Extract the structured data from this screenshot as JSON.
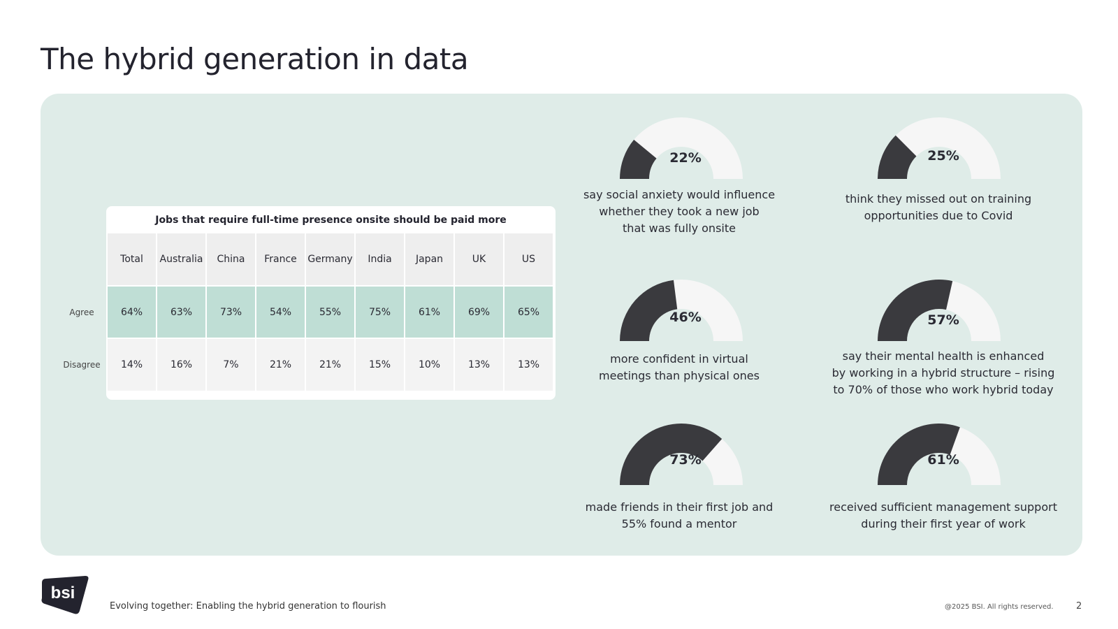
{
  "page": {
    "title": "The hybrid generation in data"
  },
  "chart_data": [
    {
      "type": "table",
      "title": "Jobs that require full-time presence onsite should be paid more",
      "columns": [
        "Total",
        "Australia",
        "China",
        "France",
        "Germany",
        "India",
        "Japan",
        "UK",
        "US"
      ],
      "rows": [
        {
          "label": "Agree",
          "values": [
            "64%",
            "63%",
            "73%",
            "54%",
            "55%",
            "75%",
            "61%",
            "69%",
            "65%"
          ]
        },
        {
          "label": "Disagree",
          "values": [
            "14%",
            "16%",
            "7%",
            "21%",
            "21%",
            "15%",
            "10%",
            "13%",
            "13%"
          ]
        }
      ]
    },
    {
      "type": "gauge",
      "items": [
        {
          "value": 22,
          "label": "22%",
          "lines": [
            "say social anxiety would influence",
            "whether they took a new job",
            "that was fully onsite"
          ]
        },
        {
          "value": 25,
          "label": "25%",
          "lines": [
            "think they missed out on training",
            "opportunities due to Covid"
          ]
        },
        {
          "value": 46,
          "label": "46%",
          "lines": [
            "more confident in virtual",
            "meetings than physical ones"
          ]
        },
        {
          "value": 57,
          "label": "57%",
          "lines": [
            "say their mental health is enhanced",
            "by working in a hybrid structure – rising",
            "to 70% of those who work hybrid today"
          ]
        },
        {
          "value": 73,
          "label": "73%",
          "lines": [
            "made friends in their first job and",
            "55% found a mentor"
          ]
        },
        {
          "value": 61,
          "label": "61%",
          "lines": [
            "received sufficient management support",
            "during their first year of work"
          ]
        }
      ]
    }
  ],
  "footer": {
    "logo_text": "bsi",
    "tagline": "Evolving together: Enabling the hybrid generation to flourish",
    "copyright": "@2025 BSI. All rights reserved.",
    "page_number": "2"
  },
  "colors": {
    "panel": "#dfece8",
    "gauge_fill": "#3a3a3e",
    "gauge_track": "#f6f6f6",
    "agree_row": "#bfded5"
  }
}
